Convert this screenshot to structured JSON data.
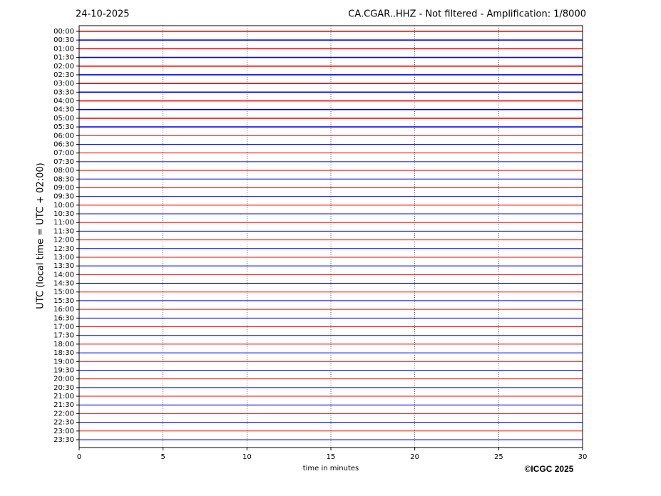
{
  "chart_data": {
    "type": "helicorder",
    "date": "24-10-2025",
    "title": "CA.CGAR..HHZ - Not filtered - Amplification: 1/8000",
    "y_label": "UTC (local time = UTC + 02:00)",
    "x_label": "time in minutes",
    "copyright": "©ICGC 2025",
    "categories": [
      "00:00",
      "00:30",
      "01:00",
      "01:30",
      "02:00",
      "02:30",
      "03:00",
      "03:30",
      "04:00",
      "04:30",
      "05:00",
      "05:30",
      "06:00",
      "06:30",
      "07:00",
      "07:30",
      "08:00",
      "08:30",
      "09:00",
      "09:30",
      "10:00",
      "10:30",
      "11:00",
      "11:30",
      "12:00",
      "12:30",
      "13:00",
      "13:30",
      "14:00",
      "14:30",
      "15:00",
      "15:30",
      "16:00",
      "16:30",
      "17:00",
      "17:30",
      "18:00",
      "18:30",
      "19:00",
      "19:30",
      "20:00",
      "20:30",
      "21:00",
      "21:30",
      "22:00",
      "22:30",
      "23:00",
      "23:30"
    ],
    "colors": [
      "#ff0000",
      "#0000ff"
    ],
    "xlim": [
      0,
      30
    ],
    "xticks": [
      0,
      5,
      10,
      15,
      20,
      25,
      30
    ],
    "grid": true
  }
}
